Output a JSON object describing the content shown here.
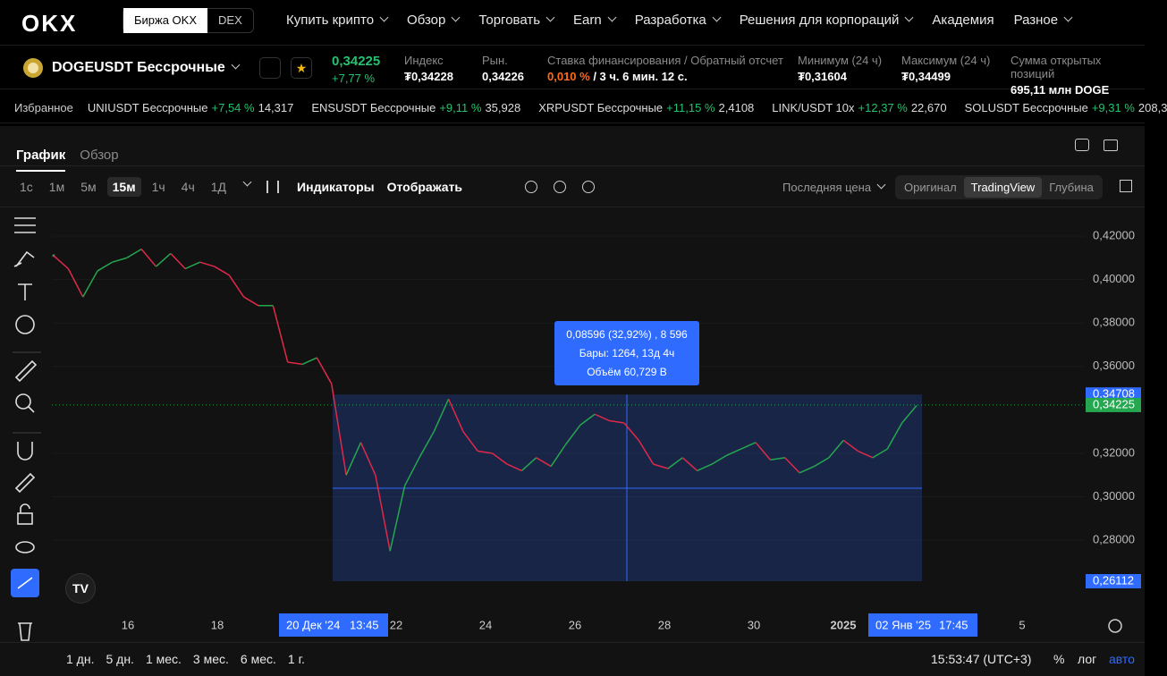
{
  "nav": {
    "logo": "OKX",
    "exchange": "Биржа OKX",
    "dex": "DEX",
    "menu": [
      "Купить крипто",
      "Обзор",
      "Торговать",
      "Earn",
      "Разработка",
      "Решения для корпораций",
      "Академия",
      "Разное"
    ]
  },
  "ticker": {
    "symbol": "DOGEUSDT Бессрочные",
    "price": "0,34225",
    "change": "+7,77 %",
    "stats": [
      {
        "label": "Индекс",
        "value": "₮0,34228"
      },
      {
        "label": "Рын.",
        "value": "0,34226"
      },
      {
        "label": "Ставка финансирования / Обратный отсчет",
        "rate": "0,010 %",
        "value": " / 3 ч. 6 мин. 12 с."
      },
      {
        "label": "Минимум (24 ч)",
        "value": "₮0,31604"
      },
      {
        "label": "Максимум (24 ч)",
        "value": "₮0,34499"
      },
      {
        "label": "Сумма открытых позиций",
        "value": "695,11 млн DOGE"
      }
    ]
  },
  "favorites": {
    "title": "Избранное",
    "items": [
      {
        "name": "UNIUSDT Бессрочные",
        "change": "+7,54 %",
        "price": "14,317"
      },
      {
        "name": "ENSUSDT Бессрочные",
        "change": "+9,11 %",
        "price": "35,928"
      },
      {
        "name": "XRPUSDT Бессрочные",
        "change": "+11,15 %",
        "price": "2,4108"
      },
      {
        "name": "LINK/USDT 10x",
        "change": "+12,37 %",
        "price": "22,670"
      },
      {
        "name": "SOLUSDT Бессрочные",
        "change": "+9,31 %",
        "price": "208,3"
      }
    ]
  },
  "tabs": [
    "График",
    "Обзор"
  ],
  "toolbar": {
    "intervals": [
      "1с",
      "1м",
      "5м",
      "15м",
      "1ч",
      "4ч",
      "1Д"
    ],
    "active": "15м",
    "indicators": "Индикаторы",
    "display": "Отображать",
    "price_source": "Последняя цена",
    "views": [
      "Оригинал",
      "TradingView",
      "Глубина"
    ],
    "active_view": "TradingView"
  },
  "chart_data": {
    "type": "line",
    "values": [
      0.411,
      0.405,
      0.392,
      0.404,
      0.408,
      0.41,
      0.414,
      0.406,
      0.412,
      0.405,
      0.408,
      0.406,
      0.402,
      0.392,
      0.388,
      0.388,
      0.362,
      0.361,
      0.364,
      0.352,
      0.31,
      0.325,
      0.31,
      0.275,
      0.305,
      0.318,
      0.33,
      0.345,
      0.33,
      0.321,
      0.32,
      0.315,
      0.312,
      0.318,
      0.314,
      0.324,
      0.333,
      0.338,
      0.335,
      0.334,
      0.326,
      0.315,
      0.313,
      0.318,
      0.312,
      0.315,
      0.319,
      0.322,
      0.325,
      0.317,
      0.318,
      0.311,
      0.314,
      0.318,
      0.326,
      0.321,
      0.318,
      0.322,
      0.334,
      0.342
    ],
    "up_color": "#25a750",
    "down_color": "#e0294a",
    "ylim": [
      0.2463,
      0.4332
    ],
    "yticks": [
      {
        "value": 0.42,
        "label": "0,42000"
      },
      {
        "value": 0.4,
        "label": "0,40000"
      },
      {
        "value": 0.38,
        "label": "0,38000"
      },
      {
        "value": 0.36,
        "label": "0,36000"
      },
      {
        "value": 0.32,
        "label": "0,32000"
      },
      {
        "value": 0.3,
        "label": "0,30000"
      },
      {
        "value": 0.28,
        "label": "0,28000"
      }
    ],
    "price_tags": [
      {
        "value": 0.34708,
        "label": "0,34708",
        "color": "#2f6bff"
      },
      {
        "value": 0.34225,
        "label": "0,34225",
        "color": "#25a750"
      },
      {
        "value": 0.26112,
        "label": "0,26112",
        "color": "#2f6bff"
      }
    ],
    "xticks": [
      {
        "label": "16"
      },
      {
        "label": "18"
      },
      {
        "label": "20 Дек '24",
        "time": "13:45"
      },
      {
        "label": "22"
      },
      {
        "label": "24"
      },
      {
        "label": "26"
      },
      {
        "label": "28"
      },
      {
        "label": "30"
      },
      {
        "label": "2025"
      },
      {
        "label": "02 Янв '25",
        "time": "17:45"
      },
      {
        "label": "5"
      }
    ],
    "measure": [
      "0,08596 (32,92%) , 8 596",
      "Бары: 1264, 13д 4ч",
      "Объём 60,729 B"
    ]
  },
  "bottom": {
    "ranges": [
      "1 дн.",
      "5 дн.",
      "1 мес.",
      "3 мес.",
      "6 мес.",
      "1 г."
    ],
    "clock": "15:53:47 (UTC+3)",
    "percent": "%",
    "log": "лог",
    "auto": "авто"
  }
}
